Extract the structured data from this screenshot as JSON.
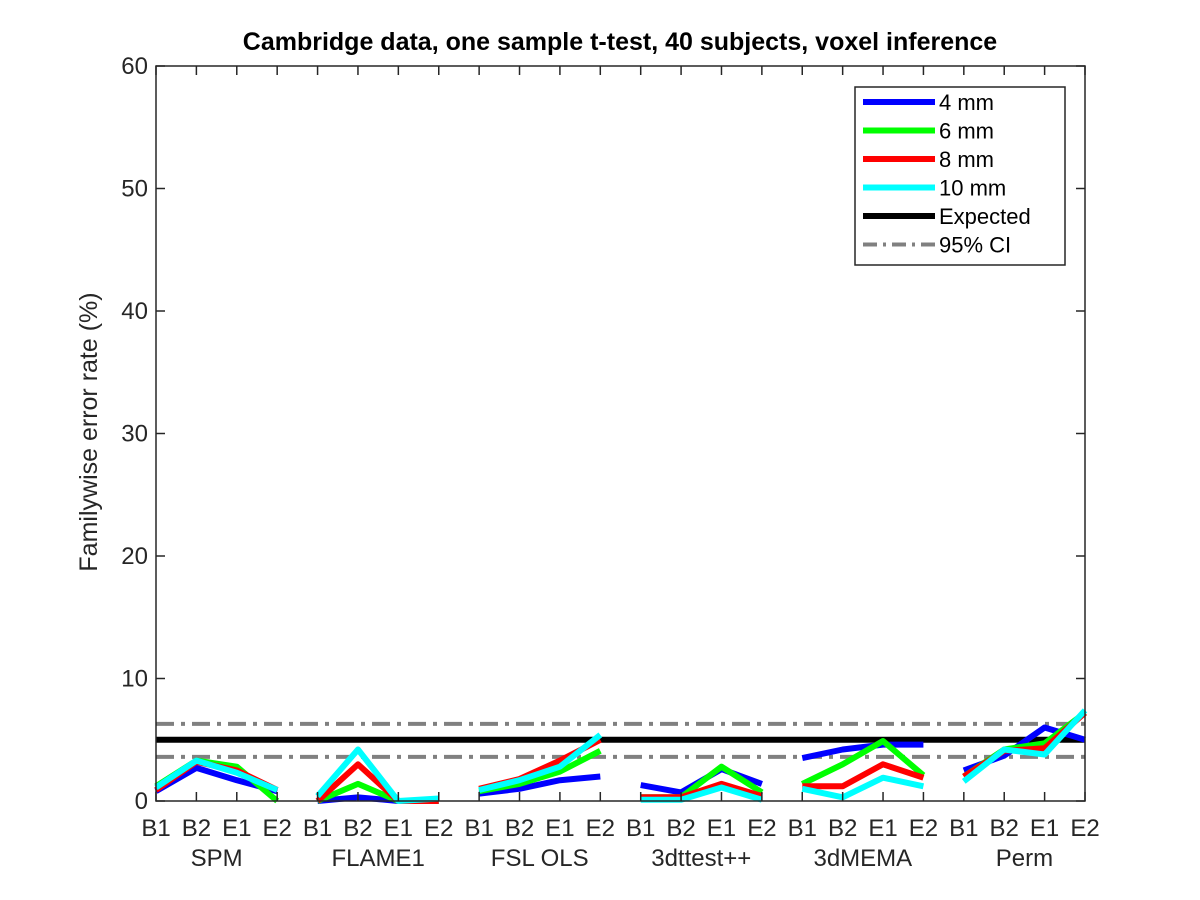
{
  "chart_data": {
    "type": "line",
    "title": "Cambridge data, one sample t-test, 40 subjects, voxel inference",
    "ylabel": "Familywise error rate (%)",
    "xlabel": "",
    "ylim": [
      0,
      60
    ],
    "yticks": [
      0,
      10,
      20,
      30,
      40,
      50,
      60
    ],
    "grid": false,
    "legend_position": "top-right",
    "groups": [
      "SPM",
      "FLAME1",
      "FSL OLS",
      "3dttest++",
      "3dMEMA",
      "Perm"
    ],
    "subcategories": [
      "B1",
      "B2",
      "E1",
      "E2"
    ],
    "series": [
      {
        "name": "4 mm",
        "color": "#0000ff",
        "values": [
          [
            0.8,
            2.7,
            1.7,
            0.8
          ],
          [
            0.0,
            0.3,
            0.0,
            0.0
          ],
          [
            0.6,
            1.0,
            1.7,
            2.0
          ],
          [
            1.3,
            0.7,
            2.6,
            1.4
          ],
          [
            3.5,
            4.2,
            4.6,
            4.6
          ],
          [
            2.5,
            3.7,
            6.0,
            5.0
          ]
        ]
      },
      {
        "name": "6 mm",
        "color": "#00ff00",
        "values": [
          [
            1.2,
            3.3,
            2.8,
            0.0
          ],
          [
            0.0,
            1.4,
            0.0,
            0.0
          ],
          [
            0.8,
            1.4,
            2.4,
            4.1
          ],
          [
            0.3,
            0.3,
            2.8,
            0.7
          ],
          [
            1.4,
            3.0,
            4.9,
            2.1
          ],
          [
            2.0,
            4.2,
            4.7,
            7.2
          ]
        ]
      },
      {
        "name": "8 mm",
        "color": "#ff0000",
        "values": [
          [
            0.9,
            3.2,
            2.5,
            0.9
          ],
          [
            0.0,
            3.0,
            0.0,
            0.0
          ],
          [
            1.0,
            1.8,
            3.3,
            5.0
          ],
          [
            0.3,
            0.3,
            1.4,
            0.4
          ],
          [
            1.2,
            1.2,
            3.0,
            1.9
          ],
          [
            2.0,
            4.1,
            4.3,
            7.2
          ]
        ]
      },
      {
        "name": "10 mm",
        "color": "#00ffff",
        "values": [
          [
            1.1,
            3.3,
            2.3,
            0.9
          ],
          [
            0.4,
            4.2,
            0.0,
            0.2
          ],
          [
            0.9,
            1.7,
            2.8,
            5.4
          ],
          [
            0.1,
            0.1,
            1.1,
            0.1
          ],
          [
            1.0,
            0.3,
            1.9,
            1.2
          ],
          [
            1.6,
            4.2,
            3.8,
            7.4
          ]
        ]
      }
    ],
    "reference_lines": [
      {
        "name": "Expected",
        "value": 5,
        "color": "#000000",
        "style": "solid"
      },
      {
        "name": "95% CI",
        "values": [
          3.6,
          6.3
        ],
        "color": "#808080",
        "style": "dash-dot"
      }
    ]
  }
}
